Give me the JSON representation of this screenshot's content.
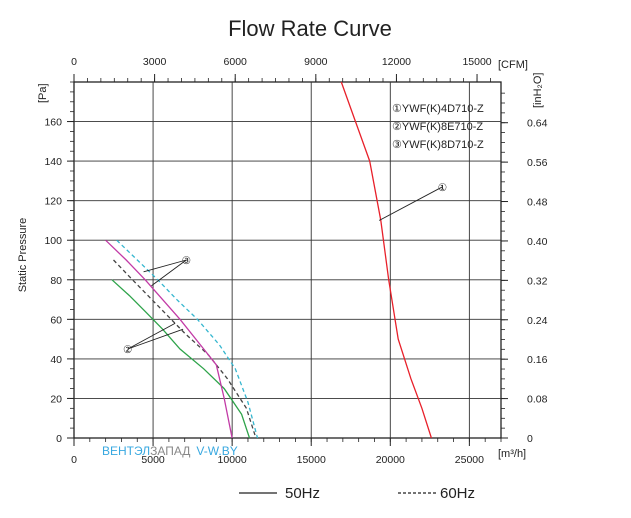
{
  "chart_data": {
    "type": "line",
    "title": "Flow Rate Curve",
    "x_axis": {
      "ticks": [
        "0",
        "5000",
        "10000",
        "15000",
        "20000",
        "25000"
      ],
      "tick_values": [
        0,
        5000,
        10000,
        15000,
        20000,
        25000
      ],
      "unit": "[m³/h]",
      "xlim": [
        0,
        27000
      ]
    },
    "x_axis_top": {
      "ticks": [
        "0",
        "3000",
        "6000",
        "9000",
        "12000",
        "15000"
      ],
      "tick_values": [
        0,
        3000,
        6000,
        9000,
        12000,
        15000
      ],
      "unit": "[CFM]"
    },
    "y_axis": {
      "label": "Static Pressure",
      "unit": "[Pa]",
      "ticks": [
        "0",
        "20",
        "40",
        "60",
        "80",
        "100",
        "120",
        "140",
        "160"
      ],
      "tick_values": [
        0,
        20,
        40,
        60,
        80,
        100,
        120,
        140,
        160
      ],
      "ylim": [
        0,
        180
      ]
    },
    "y_axis_right": {
      "unit": "[inH₂O]",
      "ticks": [
        "0",
        "0.08",
        "0.16",
        "0.24",
        "0.32",
        "0.40",
        "0.48",
        "0.56",
        "0.64"
      ],
      "tick_values": [
        0,
        0.08,
        0.16,
        0.24,
        0.32,
        0.4,
        0.48,
        0.56,
        0.64
      ]
    },
    "grid": true,
    "legend_position": "top-right",
    "legend": [
      "①YWF(K)4D710-Z",
      "②YWF(K)8E710-Z",
      "③YWF(K)8D710-Z"
    ],
    "series": [
      {
        "name": "①YWF(K)4D710-Z",
        "color": "#e8202a",
        "dash": false,
        "x": [
          16900,
          17800,
          18700,
          19400,
          19900,
          20500,
          21300,
          22000,
          22600
        ],
        "y": [
          180,
          160,
          140,
          110,
          80,
          50,
          30,
          15,
          0
        ]
      },
      {
        "name": "②YWF(K)8E710-Z",
        "color": "#2ea34a",
        "dash": false,
        "x": [
          2400,
          3500,
          4500,
          5600,
          6700,
          8200,
          9500,
          10600,
          11100
        ],
        "y": [
          80,
          72,
          64,
          55,
          45,
          35,
          25,
          12,
          0
        ]
      },
      {
        "name": "②YWF(K)8E710-Z",
        "color": "#444444",
        "dash": true,
        "x": [
          2500,
          3700,
          4800,
          5900,
          7000,
          8500,
          9700,
          10900,
          11500
        ],
        "y": [
          90,
          80,
          71,
          62,
          53,
          42,
          30,
          15,
          0
        ]
      },
      {
        "name": "③YWF(K)8D710-Z",
        "color": "#c23aa6",
        "dash": false,
        "x": [
          2000,
          3300,
          4500,
          5600,
          6700,
          8000,
          9000,
          9500,
          10000
        ],
        "y": [
          100,
          90,
          80,
          70,
          60,
          47,
          37,
          20,
          0
        ]
      },
      {
        "name": "③YWF(K)8D710-Z",
        "color": "#35b6cf",
        "dash": true,
        "x": [
          2700,
          4000,
          5300,
          6500,
          7800,
          9200,
          10200,
          11000,
          11600
        ],
        "y": [
          100,
          90,
          80,
          70,
          60,
          47,
          35,
          18,
          0
        ]
      }
    ],
    "annotations": [
      {
        "text": "①",
        "point": [
          23300,
          127
        ],
        "target": [
          19300,
          110
        ]
      },
      {
        "text": "③",
        "point": [
          7100,
          90
        ],
        "targets": [
          [
            4400,
            84
          ],
          [
            4900,
            77
          ]
        ]
      },
      {
        "text": "②",
        "point": [
          3400,
          45
        ],
        "targets": [
          [
            6400,
            58
          ],
          [
            6900,
            55
          ]
        ]
      }
    ]
  },
  "footer_legend": {
    "solid_label": "50Hz",
    "dashed_label": "60Hz"
  },
  "watermark": {
    "part1": "ВЕНТЭЛ",
    "part2": "ЗАПАД",
    "part3": "V-W.BY",
    "part1_color": "#38a8e0",
    "part2_color": "#888888",
    "part3_color": "#38a8e0"
  }
}
